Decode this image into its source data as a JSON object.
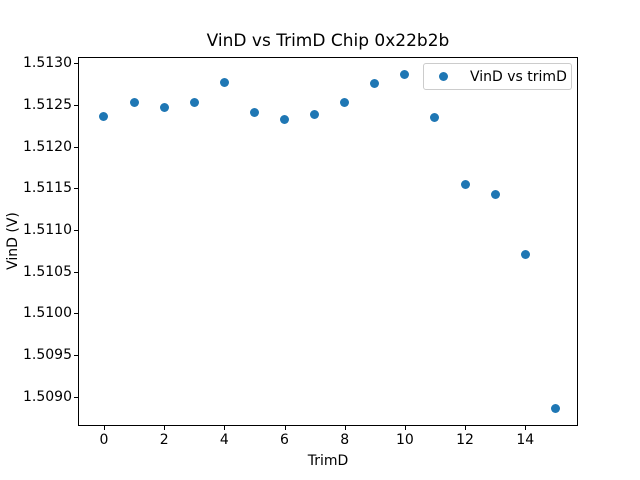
{
  "window": {
    "background": "#ffffff"
  },
  "chart_data": {
    "type": "scatter",
    "title": "VinD vs TrimD Chip 0x22b2b",
    "xlabel": "TrimD",
    "ylabel": "VinD (V)",
    "legend": {
      "label": "VinD vs trimD",
      "position": "upper right"
    },
    "series": [
      {
        "name": "VinD vs trimD",
        "marker": "circle",
        "color": "#1f77b4",
        "x": [
          0,
          1,
          2,
          3,
          4,
          5,
          6,
          7,
          8,
          9,
          10,
          11,
          12,
          13,
          14,
          15
        ],
        "y": [
          1.512365,
          1.512525,
          1.51247,
          1.51253,
          1.512765,
          1.51241,
          1.512325,
          1.51238,
          1.512525,
          1.51276,
          1.512865,
          1.512355,
          1.511545,
          1.51142,
          1.51071,
          1.508855
        ]
      }
    ],
    "xlim": [
      -0.83,
      15.72
    ],
    "ylim": [
      1.508659,
      1.513064
    ],
    "xticks": [
      0,
      2,
      4,
      6,
      8,
      10,
      12,
      14
    ],
    "xtick_labels": [
      "0",
      "2",
      "4",
      "6",
      "8",
      "10",
      "12",
      "14"
    ],
    "yticks": [
      1.509,
      1.5095,
      1.51,
      1.5105,
      1.511,
      1.5115,
      1.512,
      1.5125,
      1.513
    ],
    "ytick_labels": [
      "1.5090",
      "1.5095",
      "1.5100",
      "1.5105",
      "1.5110",
      "1.5115",
      "1.5120",
      "1.5125",
      "1.5130"
    ],
    "grid": false,
    "axis_color": "#000000",
    "text_color": "#000000"
  }
}
